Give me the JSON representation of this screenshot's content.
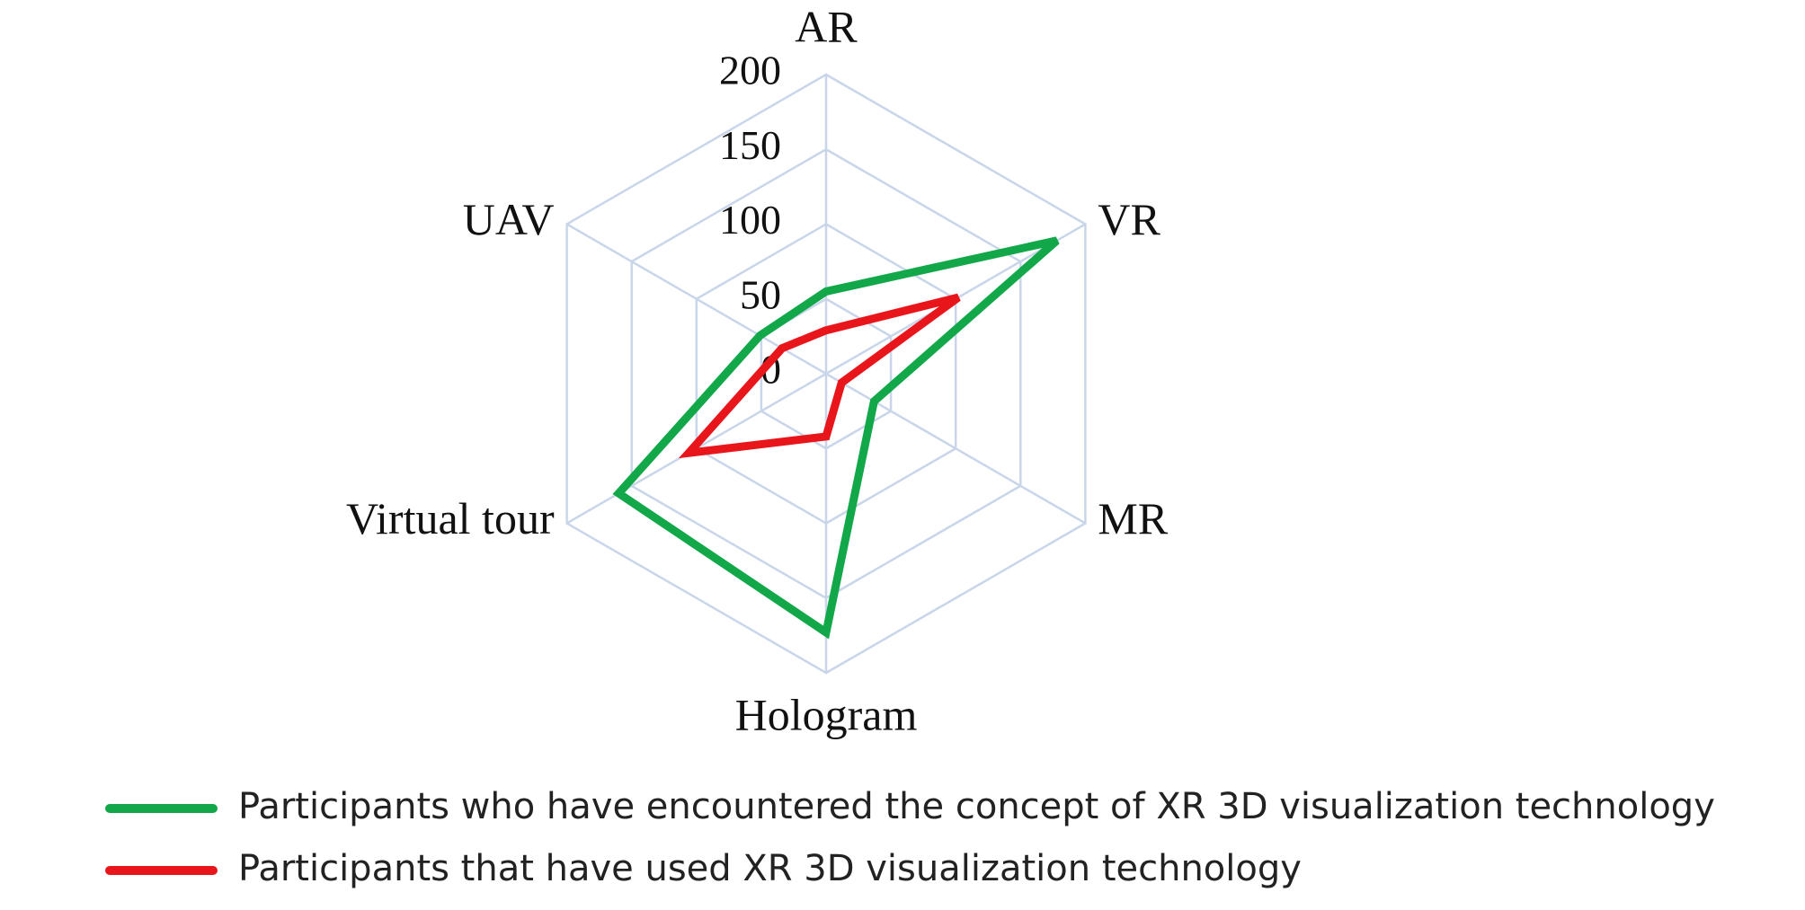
{
  "chart_data": {
    "type": "radar",
    "categories": [
      "AR",
      "VR",
      "MR",
      "Hologram",
      "Virtual tour",
      "UAV"
    ],
    "series": [
      {
        "name": "Participants who have encountered the concept of XR 3D visualization technology",
        "color": "#12a84a",
        "values": [
          55,
          178,
          37,
          173,
          160,
          51
        ]
      },
      {
        "name": "Participants that have used XR 3D visualization technology",
        "color": "#e8161b",
        "values": [
          29,
          102,
          12,
          42,
          106,
          34
        ]
      }
    ],
    "ylim": [
      0,
      200
    ],
    "yticks": [
      0,
      50,
      100,
      150,
      200
    ],
    "grid": true,
    "grid_color": "#c9d6ea",
    "legend": "bottom"
  }
}
